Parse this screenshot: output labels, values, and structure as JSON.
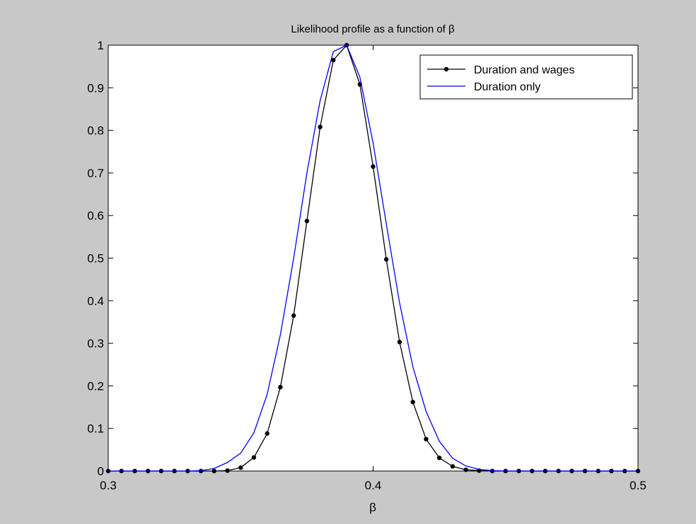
{
  "chart_data": {
    "type": "line",
    "title": "Likelihood profile as a function of β",
    "xlabel": "β",
    "ylabel": "",
    "xlim": [
      0.3,
      0.5
    ],
    "ylim": [
      0,
      1
    ],
    "xticks": [
      "0.3",
      "0.4",
      "0.5"
    ],
    "yticks": [
      "0",
      "0.1",
      "0.2",
      "0.3",
      "0.4",
      "0.5",
      "0.6",
      "0.7",
      "0.8",
      "0.9",
      "1"
    ],
    "grid": false,
    "legend_position": "top-right",
    "series": [
      {
        "name": "Duration and wages",
        "color": "#000000",
        "marker": "dot",
        "x": [
          0.3,
          0.305,
          0.31,
          0.315,
          0.32,
          0.325,
          0.33,
          0.335,
          0.34,
          0.345,
          0.35,
          0.355,
          0.36,
          0.365,
          0.37,
          0.375,
          0.38,
          0.385,
          0.39,
          0.395,
          0.4,
          0.405,
          0.41,
          0.415,
          0.42,
          0.425,
          0.43,
          0.435,
          0.44,
          0.445,
          0.45,
          0.455,
          0.46,
          0.465,
          0.47,
          0.475,
          0.48,
          0.485,
          0.49,
          0.495,
          0.5
        ],
        "y": [
          0,
          0,
          0,
          0,
          0,
          0,
          0,
          0,
          0,
          0.001,
          0.008,
          0.032,
          0.088,
          0.197,
          0.365,
          0.587,
          0.808,
          0.965,
          1.0,
          0.908,
          0.715,
          0.497,
          0.303,
          0.162,
          0.075,
          0.031,
          0.011,
          0.003,
          0.001,
          0,
          0,
          0,
          0,
          0,
          0,
          0,
          0,
          0,
          0,
          0,
          0
        ]
      },
      {
        "name": "Duration only",
        "color": "#0000ff",
        "marker": "none",
        "x": [
          0.3,
          0.305,
          0.31,
          0.315,
          0.32,
          0.325,
          0.33,
          0.335,
          0.34,
          0.345,
          0.35,
          0.355,
          0.36,
          0.365,
          0.37,
          0.375,
          0.38,
          0.385,
          0.39,
          0.395,
          0.4,
          0.405,
          0.41,
          0.415,
          0.42,
          0.425,
          0.43,
          0.435,
          0.44,
          0.445,
          0.45,
          0.455,
          0.46,
          0.465,
          0.47,
          0.475,
          0.48,
          0.485,
          0.49,
          0.495,
          0.5
        ],
        "y": [
          0,
          0,
          0,
          0,
          0,
          0,
          0,
          0.001,
          0.006,
          0.02,
          0.042,
          0.09,
          0.18,
          0.32,
          0.5,
          0.7,
          0.87,
          0.985,
          1.0,
          0.925,
          0.77,
          0.58,
          0.395,
          0.245,
          0.14,
          0.07,
          0.03,
          0.012,
          0.004,
          0.001,
          0,
          0,
          0,
          0,
          0,
          0,
          0,
          0,
          0,
          0,
          0
        ]
      }
    ]
  }
}
